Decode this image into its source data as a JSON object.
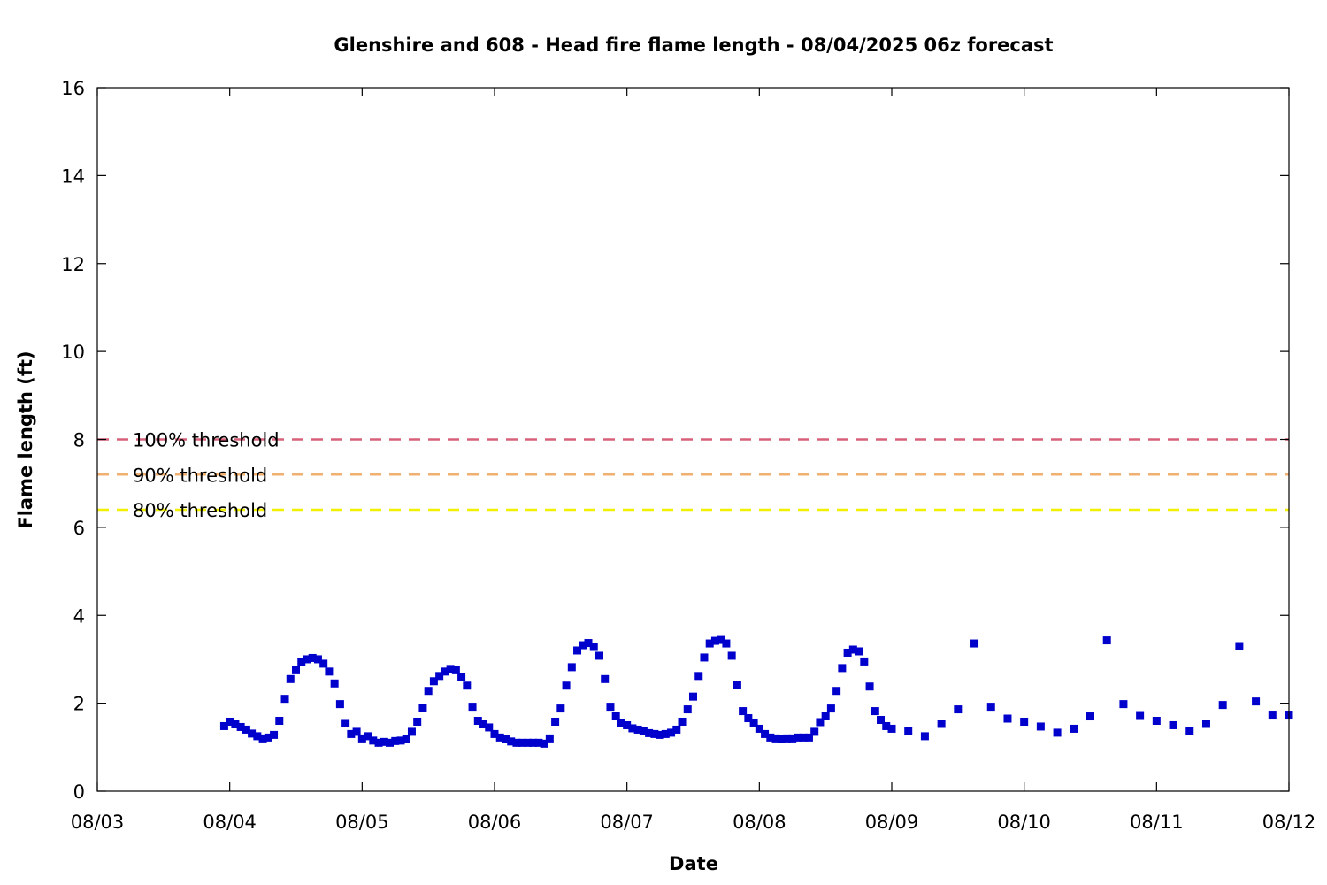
{
  "chart_data": {
    "type": "scatter",
    "title": "Glenshire and 608 - Head fire flame length - 08/04/2025 06z forecast",
    "xlabel": "Date",
    "ylabel": "Flame length (ft)",
    "x_ticks": [
      "08/03",
      "08/04",
      "08/05",
      "08/06",
      "08/07",
      "08/08",
      "08/09",
      "08/10",
      "08/11",
      "08/12"
    ],
    "y_ticks": [
      "0",
      "2",
      "4",
      "6",
      "8",
      "10",
      "12",
      "14",
      "16"
    ],
    "xlim": [
      "08/03 00:00",
      "08/12 00:00"
    ],
    "ylim": [
      0,
      16
    ],
    "grid": false,
    "thresholds": [
      {
        "name": "100% threshold",
        "value": 8.0,
        "color": "#d9607a"
      },
      {
        "name": "90% threshold",
        "value": 7.2,
        "color": "#f0b070"
      },
      {
        "name": "80% threshold",
        "value": 6.4,
        "color": "#f0f000"
      }
    ],
    "series": [
      {
        "color": "#0000cc",
        "points": [
          [
            "08/03 23:00",
            1.48
          ],
          [
            "08/04 00:00",
            1.58
          ],
          [
            "08/04 01:00",
            1.52
          ],
          [
            "08/04 02:00",
            1.46
          ],
          [
            "08/04 03:00",
            1.4
          ],
          [
            "08/04 04:00",
            1.31
          ],
          [
            "08/04 05:00",
            1.25
          ],
          [
            "08/04 06:00",
            1.2
          ],
          [
            "08/04 07:00",
            1.22
          ],
          [
            "08/04 08:00",
            1.28
          ],
          [
            "08/04 09:00",
            1.6
          ],
          [
            "08/04 10:00",
            2.1
          ],
          [
            "08/04 11:00",
            2.55
          ],
          [
            "08/04 12:00",
            2.75
          ],
          [
            "08/04 13:00",
            2.93
          ],
          [
            "08/04 14:00",
            3.0
          ],
          [
            "08/04 15:00",
            3.03
          ],
          [
            "08/04 16:00",
            3.0
          ],
          [
            "08/04 17:00",
            2.9
          ],
          [
            "08/04 18:00",
            2.72
          ],
          [
            "08/04 19:00",
            2.45
          ],
          [
            "08/04 20:00",
            1.98
          ],
          [
            "08/04 21:00",
            1.55
          ],
          [
            "08/04 22:00",
            1.3
          ],
          [
            "08/04 23:00",
            1.35
          ],
          [
            "08/05 00:00",
            1.2
          ],
          [
            "08/05 01:00",
            1.25
          ],
          [
            "08/05 02:00",
            1.15
          ],
          [
            "08/05 03:00",
            1.1
          ],
          [
            "08/05 04:00",
            1.12
          ],
          [
            "08/05 05:00",
            1.1
          ],
          [
            "08/05 06:00",
            1.14
          ],
          [
            "08/05 07:00",
            1.15
          ],
          [
            "08/05 08:00",
            1.18
          ],
          [
            "08/05 09:00",
            1.35
          ],
          [
            "08/05 10:00",
            1.58
          ],
          [
            "08/05 11:00",
            1.9
          ],
          [
            "08/05 12:00",
            2.28
          ],
          [
            "08/05 13:00",
            2.5
          ],
          [
            "08/05 14:00",
            2.62
          ],
          [
            "08/05 15:00",
            2.72
          ],
          [
            "08/05 16:00",
            2.78
          ],
          [
            "08/05 17:00",
            2.75
          ],
          [
            "08/05 18:00",
            2.6
          ],
          [
            "08/05 19:00",
            2.4
          ],
          [
            "08/05 20:00",
            1.92
          ],
          [
            "08/05 21:00",
            1.6
          ],
          [
            "08/05 22:00",
            1.52
          ],
          [
            "08/05 23:00",
            1.45
          ],
          [
            "08/06 00:00",
            1.3
          ],
          [
            "08/06 01:00",
            1.22
          ],
          [
            "08/06 02:00",
            1.18
          ],
          [
            "08/06 03:00",
            1.13
          ],
          [
            "08/06 04:00",
            1.1
          ],
          [
            "08/06 05:00",
            1.1
          ],
          [
            "08/06 06:00",
            1.1
          ],
          [
            "08/06 07:00",
            1.1
          ],
          [
            "08/06 08:00",
            1.1
          ],
          [
            "08/06 09:00",
            1.08
          ],
          [
            "08/06 10:00",
            1.2
          ],
          [
            "08/06 11:00",
            1.58
          ],
          [
            "08/06 12:00",
            1.88
          ],
          [
            "08/06 13:00",
            2.4
          ],
          [
            "08/06 14:00",
            2.82
          ],
          [
            "08/06 15:00",
            3.2
          ],
          [
            "08/06 16:00",
            3.32
          ],
          [
            "08/06 17:00",
            3.37
          ],
          [
            "08/06 18:00",
            3.28
          ],
          [
            "08/06 19:00",
            3.08
          ],
          [
            "08/06 20:00",
            2.55
          ],
          [
            "08/06 21:00",
            1.92
          ],
          [
            "08/06 22:00",
            1.72
          ],
          [
            "08/06 23:00",
            1.56
          ],
          [
            "08/07 00:00",
            1.5
          ],
          [
            "08/07 01:00",
            1.43
          ],
          [
            "08/07 02:00",
            1.4
          ],
          [
            "08/07 03:00",
            1.36
          ],
          [
            "08/07 04:00",
            1.32
          ],
          [
            "08/07 05:00",
            1.3
          ],
          [
            "08/07 06:00",
            1.28
          ],
          [
            "08/07 07:00",
            1.3
          ],
          [
            "08/07 08:00",
            1.33
          ],
          [
            "08/07 09:00",
            1.4
          ],
          [
            "08/07 10:00",
            1.58
          ],
          [
            "08/07 11:00",
            1.86
          ],
          [
            "08/07 12:00",
            2.15
          ],
          [
            "08/07 13:00",
            2.62
          ],
          [
            "08/07 14:00",
            3.04
          ],
          [
            "08/07 15:00",
            3.36
          ],
          [
            "08/07 16:00",
            3.42
          ],
          [
            "08/07 17:00",
            3.44
          ],
          [
            "08/07 18:00",
            3.36
          ],
          [
            "08/07 19:00",
            3.08
          ],
          [
            "08/07 20:00",
            2.42
          ],
          [
            "08/07 21:00",
            1.82
          ],
          [
            "08/07 22:00",
            1.66
          ],
          [
            "08/07 23:00",
            1.56
          ],
          [
            "08/08 00:00",
            1.42
          ],
          [
            "08/08 01:00",
            1.3
          ],
          [
            "08/08 02:00",
            1.22
          ],
          [
            "08/08 03:00",
            1.2
          ],
          [
            "08/08 04:00",
            1.18
          ],
          [
            "08/08 05:00",
            1.2
          ],
          [
            "08/08 06:00",
            1.2
          ],
          [
            "08/08 07:00",
            1.22
          ],
          [
            "08/08 08:00",
            1.22
          ],
          [
            "08/08 09:00",
            1.22
          ],
          [
            "08/08 10:00",
            1.35
          ],
          [
            "08/08 11:00",
            1.57
          ],
          [
            "08/08 12:00",
            1.72
          ],
          [
            "08/08 13:00",
            1.88
          ],
          [
            "08/08 14:00",
            2.28
          ],
          [
            "08/08 15:00",
            2.8
          ],
          [
            "08/08 16:00",
            3.15
          ],
          [
            "08/08 17:00",
            3.22
          ],
          [
            "08/08 18:00",
            3.18
          ],
          [
            "08/08 19:00",
            2.95
          ],
          [
            "08/08 20:00",
            2.38
          ],
          [
            "08/08 21:00",
            1.82
          ],
          [
            "08/08 22:00",
            1.62
          ],
          [
            "08/08 23:00",
            1.48
          ],
          [
            "08/09 00:00",
            1.42
          ],
          [
            "08/09 03:00",
            1.37
          ],
          [
            "08/09 06:00",
            1.25
          ],
          [
            "08/09 09:00",
            1.53
          ],
          [
            "08/09 12:00",
            1.86
          ],
          [
            "08/09 15:00",
            3.36
          ],
          [
            "08/09 18:00",
            1.92
          ],
          [
            "08/09 21:00",
            1.65
          ],
          [
            "08/10 00:00",
            1.58
          ],
          [
            "08/10 03:00",
            1.47
          ],
          [
            "08/10 06:00",
            1.33
          ],
          [
            "08/10 09:00",
            1.42
          ],
          [
            "08/10 12:00",
            1.7
          ],
          [
            "08/10 15:00",
            3.43
          ],
          [
            "08/10 18:00",
            1.98
          ],
          [
            "08/10 21:00",
            1.73
          ],
          [
            "08/11 00:00",
            1.6
          ],
          [
            "08/11 03:00",
            1.5
          ],
          [
            "08/11 06:00",
            1.36
          ],
          [
            "08/11 09:00",
            1.53
          ],
          [
            "08/11 12:00",
            1.96
          ],
          [
            "08/11 15:00",
            3.3
          ],
          [
            "08/11 18:00",
            2.04
          ],
          [
            "08/11 21:00",
            1.74
          ],
          [
            "08/12 00:00",
            1.74
          ]
        ]
      }
    ]
  }
}
